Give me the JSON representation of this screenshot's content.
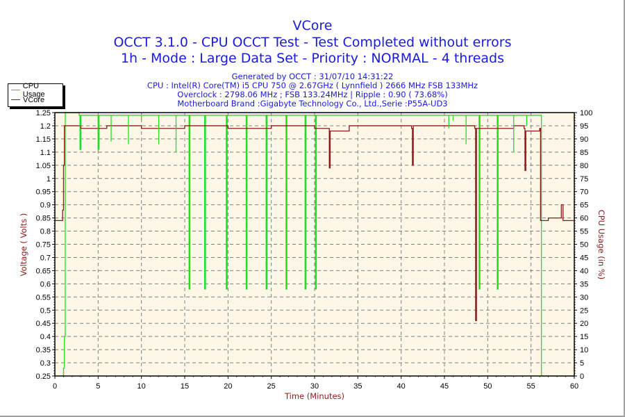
{
  "header": {
    "title": "VCore",
    "line2": "OCCT 3.1.0 - CPU OCCT Test - Test Completed without errors",
    "line3": "1h - Mode : Large Data Set - Priority : NORMAL - 4 threads",
    "generated": "Generated by OCCT : 31/07/10 14:31:22",
    "cpu": "CPU : Intel(R) Core(TM) i5 CPU 750 @ 2.67GHz ( Lynnfield ) 2666 MHz FSB 133MHz",
    "overclock": "Overclock : 2798.06 MHz ; FSB 133.24MHz | Ripple : 0.90 ( 73.68%)",
    "motherboard": "Motherboard Brand :Gigabyte Technology Co., Ltd.,Serie :P55A-UD3"
  },
  "legend": [
    {
      "label": "CPU Usage",
      "color": "#22dd22"
    },
    {
      "label": "VCore",
      "color": "#8b1a1a"
    }
  ],
  "colors": {
    "title": "#1a1adc",
    "plot_bg": "#fdf7e8",
    "grid": "#808080",
    "cpu_usage": "#22dd22",
    "vcore": "#8b1a1a",
    "axis_title": "#8b1a1a"
  },
  "chart_data": {
    "type": "line",
    "title": "VCore",
    "xlabel": "Time (Minutes)",
    "ylabel": "Voltage ( Volts )",
    "y2label": "CPU Usage (in %)",
    "xlim": [
      0,
      60
    ],
    "ylim": [
      0.25,
      1.25
    ],
    "y2lim": [
      0,
      100
    ],
    "grid": true,
    "legend_position": "top-left outside",
    "x_ticks": [
      0,
      5,
      10,
      15,
      20,
      25,
      30,
      35,
      40,
      45,
      50,
      55,
      60
    ],
    "y_ticks": [
      "0.25",
      "0.3",
      "0.35",
      "0.4",
      "0.45",
      "0.5",
      "0.55",
      "0.6",
      "0.65",
      "0.7",
      "0.75",
      "0.8",
      "0.85",
      "0.9",
      "0.95",
      "1",
      "1.05",
      "1.1",
      "1.15",
      "1.2",
      "1.25"
    ],
    "y2_ticks": [
      "0",
      "5",
      "10",
      "15",
      "20",
      "25",
      "30",
      "35",
      "40",
      "45",
      "50",
      "55",
      "60",
      "65",
      "70",
      "75",
      "80",
      "85",
      "90",
      "95",
      "100"
    ],
    "series": [
      {
        "name": "VCore",
        "axis": "left",
        "color": "#8b1a1a",
        "points": [
          [
            0,
            0.84
          ],
          [
            0.8,
            0.84
          ],
          [
            0.9,
            0.88
          ],
          [
            1.0,
            1.05
          ],
          [
            1.1,
            1.2
          ],
          [
            3.0,
            1.19
          ],
          [
            6.0,
            1.2
          ],
          [
            10.0,
            1.19
          ],
          [
            15.0,
            1.2
          ],
          [
            20.0,
            1.19
          ],
          [
            25.0,
            1.2
          ],
          [
            30.0,
            1.19
          ],
          [
            31.6,
            1.19
          ],
          [
            31.7,
            1.04
          ],
          [
            31.8,
            1.18
          ],
          [
            34.0,
            1.2
          ],
          [
            38.0,
            1.2
          ],
          [
            41.2,
            1.19
          ],
          [
            41.3,
            1.05
          ],
          [
            41.4,
            1.2
          ],
          [
            45.0,
            1.2
          ],
          [
            48.5,
            1.19
          ],
          [
            48.6,
            0.46
          ],
          [
            48.7,
            1.19
          ],
          [
            53.0,
            1.2
          ],
          [
            54.2,
            1.19
          ],
          [
            54.3,
            1.03
          ],
          [
            54.4,
            1.18
          ],
          [
            56.0,
            1.19
          ],
          [
            56.1,
            0.84
          ],
          [
            57.0,
            0.85
          ],
          [
            58.5,
            0.9
          ],
          [
            58.7,
            0.84
          ],
          [
            60.0,
            0.84
          ]
        ]
      },
      {
        "name": "CPU Usage",
        "axis": "right",
        "color": "#22dd22",
        "points": [
          [
            0,
            null
          ],
          [
            0.9,
            0
          ],
          [
            1.0,
            3
          ],
          [
            1.1,
            15
          ],
          [
            1.2,
            100
          ],
          [
            2.8,
            99
          ],
          [
            2.9,
            86
          ],
          [
            3.0,
            99
          ],
          [
            4.9,
            99
          ],
          [
            5.0,
            86
          ],
          [
            5.1,
            99
          ],
          [
            15.4,
            99
          ],
          [
            15.5,
            33
          ],
          [
            15.6,
            99
          ],
          [
            17.2,
            99
          ],
          [
            17.3,
            33
          ],
          [
            17.4,
            99
          ],
          [
            19.7,
            99
          ],
          [
            19.8,
            33
          ],
          [
            19.9,
            99
          ],
          [
            22.0,
            99
          ],
          [
            22.1,
            33
          ],
          [
            22.2,
            99
          ],
          [
            24.3,
            99
          ],
          [
            24.4,
            33
          ],
          [
            24.5,
            99
          ],
          [
            26.6,
            99
          ],
          [
            26.7,
            33
          ],
          [
            26.8,
            99
          ],
          [
            28.8,
            99
          ],
          [
            28.9,
            33
          ],
          [
            29.0,
            99
          ],
          [
            30.0,
            99
          ],
          [
            30.1,
            33
          ],
          [
            30.2,
            99
          ],
          [
            48.9,
            99
          ],
          [
            49.0,
            33
          ],
          [
            49.1,
            99
          ],
          [
            51.0,
            99
          ],
          [
            51.1,
            33
          ],
          [
            51.2,
            99
          ],
          [
            56.1,
            99
          ],
          [
            56.2,
            0
          ],
          [
            60.0,
            0
          ]
        ]
      }
    ],
    "dips_note": "CPU usage periodic dips to ~33% at ~15.5, 17.3, 19.8, 22.1, 24.4, 26.7, 28.9, 30.1, 49, 51 min; smaller dips to ~85% near 3, 5, 6.5, 8.5, 10, 12, 14 min"
  }
}
